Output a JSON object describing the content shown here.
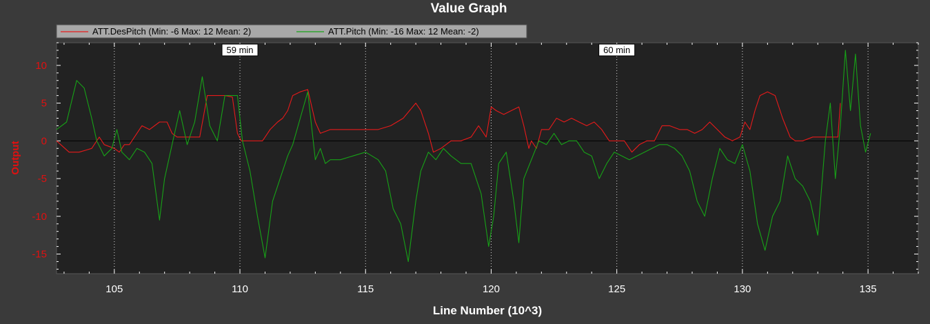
{
  "chart_data": {
    "type": "line",
    "title": "Value Graph",
    "xlabel": "Line Number (10^3)",
    "ylabel": "Output",
    "xlim": [
      102.7,
      137.0
    ],
    "ylim": [
      -17.6,
      13.0
    ],
    "xticks": [
      105,
      110,
      115,
      120,
      125,
      130,
      135
    ],
    "yticks": [
      -15,
      -10,
      -5,
      0,
      5,
      10
    ],
    "grid": "vertical dotted lines at major x ticks",
    "legend_position": "top-left",
    "time_markers": [
      {
        "x": 110,
        "label": "59 min"
      },
      {
        "x": 125,
        "label": "60 min"
      }
    ],
    "series": [
      {
        "name": "ATT.DesPitch (Min: -6 Max: 12 Mean: 2)",
        "color": "#e81a1a",
        "x": [
          102.7,
          103.2,
          103.6,
          104.1,
          104.4,
          104.6,
          105.0,
          105.2,
          105.4,
          105.6,
          105.9,
          106.1,
          106.4,
          106.8,
          107.1,
          107.3,
          107.5,
          107.8,
          108.0,
          108.4,
          108.7,
          109.0,
          109.4,
          109.7,
          109.9,
          110.05,
          110.3,
          110.6,
          110.9,
          111.2,
          111.5,
          111.7,
          111.9,
          112.1,
          112.4,
          112.7,
          113.0,
          113.2,
          113.6,
          114.0,
          114.5,
          115.0,
          115.5,
          116.0,
          116.5,
          117.0,
          117.2,
          117.5,
          117.7,
          118.0,
          118.4,
          118.8,
          119.2,
          119.5,
          119.8,
          120.0,
          120.2,
          120.5,
          120.8,
          121.1,
          121.3,
          121.5,
          121.6,
          121.8,
          122.0,
          122.3,
          122.6,
          122.9,
          123.2,
          123.5,
          123.8,
          124.1,
          124.4,
          124.7,
          125.0,
          125.3,
          125.6,
          125.9,
          126.2,
          126.5,
          126.8,
          127.1,
          127.5,
          127.8,
          128.1,
          128.4,
          128.7,
          129.0,
          129.3,
          129.6,
          129.9,
          130.1,
          130.3,
          130.5,
          130.7,
          131.0,
          131.3,
          131.6,
          131.9,
          132.1,
          132.4,
          132.8,
          133.2,
          133.6,
          133.8,
          133.9
        ],
        "y": [
          0.0,
          -1.5,
          -1.5,
          -1.0,
          0.5,
          -0.5,
          -1.0,
          -1.5,
          -0.5,
          -0.5,
          1.0,
          2.0,
          1.5,
          2.5,
          2.5,
          1.0,
          0.5,
          0.5,
          0.5,
          0.5,
          6.0,
          6.0,
          6.0,
          5.8,
          1.0,
          0.0,
          0.0,
          0.0,
          0.0,
          1.5,
          2.5,
          3.0,
          4.0,
          6.0,
          6.5,
          6.8,
          2.5,
          1.0,
          1.5,
          1.5,
          1.5,
          1.5,
          1.5,
          2.0,
          3.0,
          5.0,
          4.0,
          1.0,
          -1.5,
          -1.0,
          0.0,
          0.0,
          0.5,
          2.0,
          0.5,
          4.5,
          4.0,
          3.5,
          4.0,
          4.5,
          2.0,
          -1.0,
          0.0,
          -1.0,
          1.5,
          1.5,
          3.0,
          2.5,
          3.0,
          2.5,
          2.0,
          2.5,
          1.5,
          0.0,
          0.0,
          0.0,
          -1.5,
          -0.5,
          0.0,
          0.0,
          2.0,
          2.0,
          1.5,
          1.5,
          1.0,
          1.5,
          2.5,
          1.5,
          0.5,
          0.0,
          0.5,
          2.5,
          1.5,
          4.0,
          6.0,
          6.5,
          6.0,
          3.0,
          0.5,
          0.0,
          0.0,
          0.5,
          0.5,
          0.5,
          0.5,
          5.0
        ]
      },
      {
        "name": "ATT.Pitch (Min: -16 Max: 12 Mean: -2)",
        "color": "#17a317",
        "x": [
          102.7,
          103.1,
          103.5,
          103.8,
          104.1,
          104.3,
          104.6,
          104.9,
          105.1,
          105.3,
          105.6,
          105.9,
          106.2,
          106.5,
          106.8,
          107.0,
          107.3,
          107.6,
          107.9,
          108.2,
          108.5,
          108.8,
          109.1,
          109.4,
          109.7,
          109.9,
          110.1,
          110.4,
          110.7,
          111.0,
          111.3,
          111.6,
          111.9,
          112.1,
          112.4,
          112.7,
          113.0,
          113.2,
          113.4,
          113.6,
          114.0,
          114.5,
          115.0,
          115.5,
          115.8,
          116.1,
          116.4,
          116.7,
          117.0,
          117.2,
          117.5,
          117.8,
          118.1,
          118.4,
          118.8,
          119.2,
          119.6,
          119.9,
          120.1,
          120.3,
          120.6,
          120.9,
          121.1,
          121.3,
          121.6,
          121.9,
          122.2,
          122.5,
          122.8,
          123.1,
          123.4,
          123.7,
          124.0,
          124.3,
          124.6,
          124.9,
          125.2,
          125.5,
          125.8,
          126.1,
          126.4,
          126.7,
          127.0,
          127.3,
          127.6,
          127.9,
          128.2,
          128.5,
          128.8,
          129.1,
          129.4,
          129.7,
          130.0,
          130.3,
          130.6,
          130.9,
          131.2,
          131.5,
          131.8,
          132.1,
          132.4,
          132.7,
          133.0,
          133.3,
          133.5,
          133.7,
          133.9,
          134.1,
          134.3,
          134.5,
          134.7,
          134.9,
          135.1
        ],
        "y": [
          1.5,
          2.5,
          8.0,
          7.0,
          3.0,
          0.0,
          -2.0,
          -1.0,
          1.5,
          -1.5,
          -2.5,
          -1.0,
          -1.5,
          -3.0,
          -10.5,
          -5.0,
          -0.5,
          4.0,
          -0.5,
          2.5,
          8.5,
          2.0,
          0.0,
          6.0,
          6.0,
          6.0,
          0.0,
          -4.0,
          -10.0,
          -15.5,
          -8.0,
          -5.0,
          -2.0,
          -0.5,
          3.0,
          6.5,
          -2.5,
          -1.0,
          -3.0,
          -2.5,
          -2.5,
          -2.0,
          -1.5,
          -2.5,
          -4.0,
          -9.0,
          -11.0,
          -16.0,
          -8.0,
          -4.0,
          -1.5,
          -2.5,
          -1.0,
          -2.0,
          -3.0,
          -3.0,
          -7.0,
          -14.0,
          -10.0,
          -3.0,
          -1.5,
          -8.0,
          -13.5,
          -5.0,
          -2.5,
          0.0,
          -0.5,
          1.0,
          -0.5,
          0.0,
          0.0,
          -1.5,
          -2.0,
          -5.0,
          -3.0,
          -1.5,
          -2.0,
          -2.5,
          -2.0,
          -1.5,
          -1.0,
          -0.5,
          -0.5,
          -1.0,
          -2.0,
          -4.0,
          -8.0,
          -10.0,
          -5.0,
          -1.0,
          -2.5,
          -3.0,
          -0.5,
          -4.0,
          -11.0,
          -14.5,
          -10.0,
          -8.0,
          -2.0,
          -5.0,
          -6.0,
          -8.0,
          -12.5,
          0.0,
          5.0,
          -5.0,
          2.0,
          12.0,
          4.0,
          11.5,
          2.0,
          -1.5,
          1.0
        ]
      }
    ]
  }
}
